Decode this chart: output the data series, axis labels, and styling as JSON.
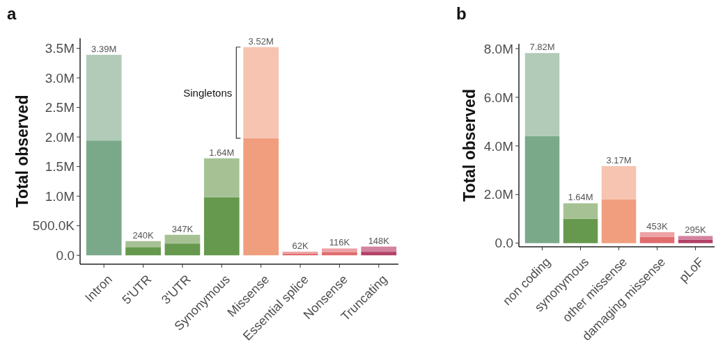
{
  "chart_data": [
    {
      "type": "bar",
      "title": "a",
      "ylabel": "Total observed",
      "stacked": true,
      "categories": [
        "Intron",
        "5'UTR",
        "3'UTR",
        "Synonymous",
        "Missense",
        "Essential splice",
        "Nonsense",
        "Truncating"
      ],
      "series": [
        {
          "values": [
            1940000,
            140000,
            200000,
            980000,
            1980000,
            30000,
            50000,
            60000
          ],
          "colors": [
            "#7aa98a",
            "#66994d",
            "#66994d",
            "#66994d",
            "#f09e7e",
            "#e06c6e",
            "#e06c6e",
            "#b34166"
          ]
        },
        {
          "values": [
            1450000,
            100000,
            147000,
            660000,
            1540000,
            32000,
            66000,
            88000
          ],
          "colors": [
            "#b1cbb8",
            "#a6c294",
            "#a6c294",
            "#a6c294",
            "#f6c4b1",
            "#eda2a5",
            "#eda2a5",
            "#d3839f"
          ]
        }
      ],
      "totals": [
        "3.39M",
        "240K",
        "347K",
        "1.64M",
        "3.52M",
        "62K",
        "116K",
        "148K"
      ],
      "ylim": [
        -150000,
        3670000
      ],
      "yticks": [
        {
          "value": 0,
          "label": "0.0"
        },
        {
          "value": 500000,
          "label": "500.0K"
        },
        {
          "value": 1000000,
          "label": "1.0M"
        },
        {
          "value": 1500000,
          "label": "1.5M"
        },
        {
          "value": 2000000,
          "label": "2.0M"
        },
        {
          "value": 2500000,
          "label": "2.5M"
        },
        {
          "value": 3000000,
          "label": "3.0M"
        },
        {
          "value": 3500000,
          "label": "3.5M"
        }
      ],
      "annotations": [
        "Singletons"
      ],
      "grid": false
    },
    {
      "type": "bar",
      "title": "b",
      "ylabel": "Total observed",
      "stacked": true,
      "categories": [
        "non coding",
        "synonymous",
        "other missense",
        "damaging missense",
        "pLoF"
      ],
      "series": [
        {
          "values": [
            4400000,
            1000000,
            1800000,
            260000,
            140000
          ],
          "colors": [
            "#7aa98a",
            "#66994d",
            "#f09e7e",
            "#e06c6e",
            "#b34166"
          ]
        },
        {
          "values": [
            3420000,
            640000,
            1370000,
            193000,
            155000
          ],
          "colors": [
            "#b1cbb8",
            "#a6c294",
            "#f6c4b1",
            "#eda2a5",
            "#d3839f"
          ]
        }
      ],
      "totals": [
        "7.82M",
        "1.64M",
        "3.17M",
        "453K",
        "295K"
      ],
      "ylim": [
        -150000,
        8200000
      ],
      "yticks": [
        {
          "value": 0,
          "label": "0.0"
        },
        {
          "value": 2000000,
          "label": "2.0M"
        },
        {
          "value": 4000000,
          "label": "4.0M"
        },
        {
          "value": 6000000,
          "label": "6.0M"
        },
        {
          "value": 8000000,
          "label": "8.0M"
        }
      ],
      "grid": false
    }
  ]
}
